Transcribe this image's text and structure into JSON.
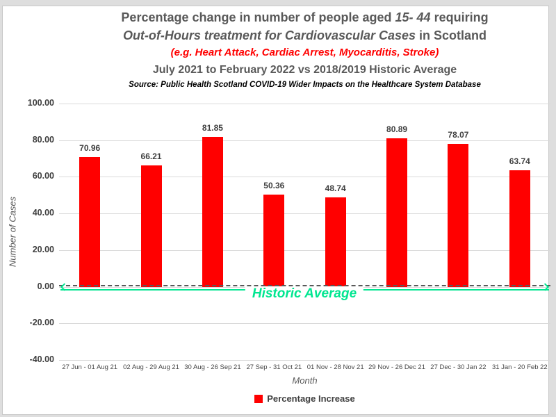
{
  "title": {
    "line1_prefix": "Percentage change in number of people aged ",
    "line1_italic": "15- 44",
    "line1_suffix": " requiring",
    "line2_italic": "Out-of-Hours treatment for Cardiovascular Cases",
    "line2_suffix": " in Scotland",
    "line3": "(e.g. Heart Attack, Cardiac Arrest, Myocarditis, Stroke)",
    "line4": "July 2021 to February 2022 vs 2018/2019 Historic Average",
    "source": "Source: Public Health Scotland COVID-19 Wider Impacts on the Healthcare System Database"
  },
  "chart_data": {
    "type": "bar",
    "categories": [
      "27 Jun - 01 Aug 21",
      "02 Aug - 29 Aug 21",
      "30 Aug - 26 Sep 21",
      "27 Sep - 31 Oct 21",
      "01 Nov - 28 Nov 21",
      "29 Nov - 26 Dec 21",
      "27 Dec - 30 Jan 22",
      "31 Jan - 20 Feb 22"
    ],
    "values": [
      70.96,
      66.21,
      81.85,
      50.36,
      48.74,
      80.89,
      78.07,
      63.74
    ],
    "series_name": "Percentage Increase",
    "xlabel": "Month",
    "ylabel": "Number of Cases",
    "ylim": [
      -40,
      100
    ],
    "ytick_step": 20,
    "yticks": [
      "100.00",
      "80.00",
      "60.00",
      "40.00",
      "20.00",
      "0.00",
      "-20.00",
      "-40.00"
    ],
    "grid": true,
    "legend_position": "bottom",
    "annotations": {
      "historic_average_label": "Historic Average",
      "historic_average_value": 0
    }
  },
  "legend": {
    "label": "Percentage Increase"
  },
  "colors": {
    "bar": "#ff0000",
    "highlight_title": "#ff0000",
    "historic_average": "#00e690",
    "title_text": "#595959",
    "axis_text": "#3f3f3f",
    "gridline": "#d9d9d9",
    "dashed_line": "#595959"
  }
}
